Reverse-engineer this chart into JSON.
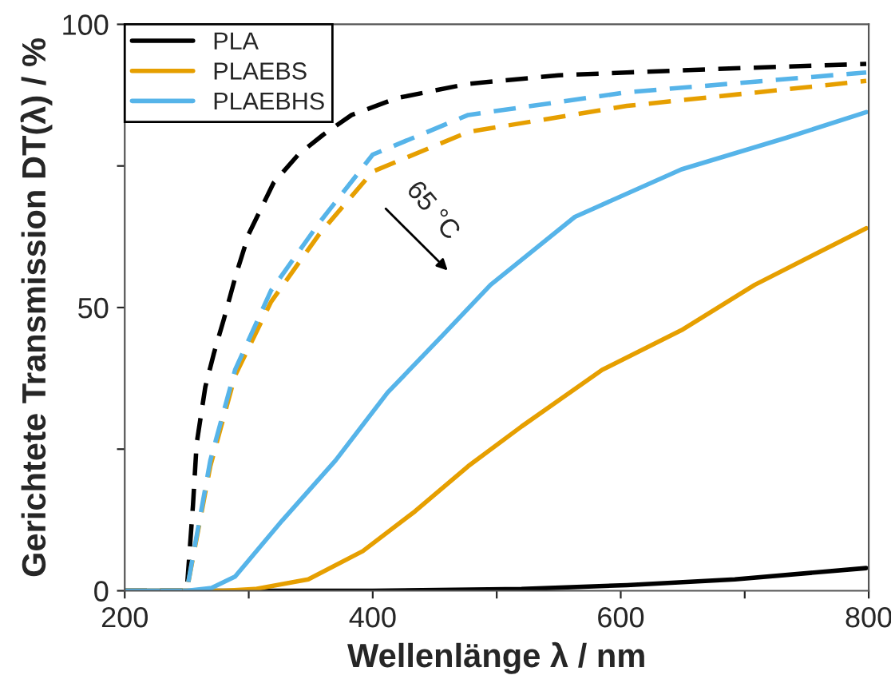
{
  "chart_data": {
    "type": "line",
    "xlabel": "Wellenlänge λ / nm",
    "ylabel": "Gerichtete Transmission DT(λ) / %",
    "xlim": [
      200,
      800
    ],
    "ylim": [
      0,
      100
    ],
    "xticks": [
      200,
      {
        "value": 300,
        "label": null
      },
      400,
      {
        "value": 500,
        "label": null
      },
      600,
      {
        "value": 700,
        "label": null
      },
      800
    ],
    "yticks": [
      0,
      {
        "value": 25,
        "label": null
      },
      50,
      {
        "value": 75,
        "label": null
      },
      100
    ],
    "grid": false,
    "legend": "top left",
    "marker": "none",
    "annotations": [
      "65 °C"
    ],
    "series": [
      {
        "name": "PLA",
        "color": "#000000",
        "line_style": "solid",
        "x": [
          200,
          400,
          520,
          605,
          692,
          798
        ],
        "values": [
          0,
          0,
          0.3,
          1,
          2,
          4
        ]
      },
      {
        "name": "PLAEBS",
        "color": "#e69f00",
        "line_style": "solid",
        "x": [
          200,
          280,
          305,
          348,
          392,
          434,
          477,
          520,
          585,
          649,
          708,
          798
        ],
        "values": [
          0,
          0,
          0.3,
          2,
          7,
          14,
          22,
          29,
          39,
          46,
          54,
          64
        ]
      },
      {
        "name": "PLAEBHS",
        "color": "#56b4e9",
        "line_style": "solid",
        "x": [
          200,
          250,
          270,
          289,
          327,
          370,
          412,
          456,
          495,
          563,
          649,
          734,
          798
        ],
        "values": [
          0,
          0,
          0.5,
          2.5,
          12.4,
          23,
          35,
          45,
          54,
          66,
          74.4,
          80,
          84.5
        ]
      },
      {
        "color": "#000000",
        "line_style": "dashed",
        "x": [
          200,
          250,
          255,
          258,
          265,
          272,
          280,
          290,
          300,
          320,
          340,
          360,
          383,
          420,
          477,
          550,
          605,
          700,
          798
        ],
        "values": [
          0,
          0,
          15,
          26,
          36,
          42,
          48,
          56,
          63,
          72,
          77,
          80.5,
          84,
          87,
          89.5,
          91,
          91.5,
          92.3,
          93
        ]
      },
      {
        "color": "#e69f00",
        "line_style": "dashed",
        "x": [
          200,
          250,
          269,
          289,
          318,
          357,
          400,
          477,
          605,
          798
        ],
        "values": [
          0,
          0,
          22,
          38,
          51,
          63,
          74,
          81,
          85.6,
          90
        ]
      },
      {
        "color": "#56b4e9",
        "line_style": "dashed",
        "x": [
          200,
          250,
          269,
          289,
          318,
          357,
          400,
          477,
          605,
          798
        ],
        "values": [
          0,
          0,
          23,
          39,
          53,
          65,
          77,
          84,
          88,
          91.5
        ]
      }
    ]
  }
}
